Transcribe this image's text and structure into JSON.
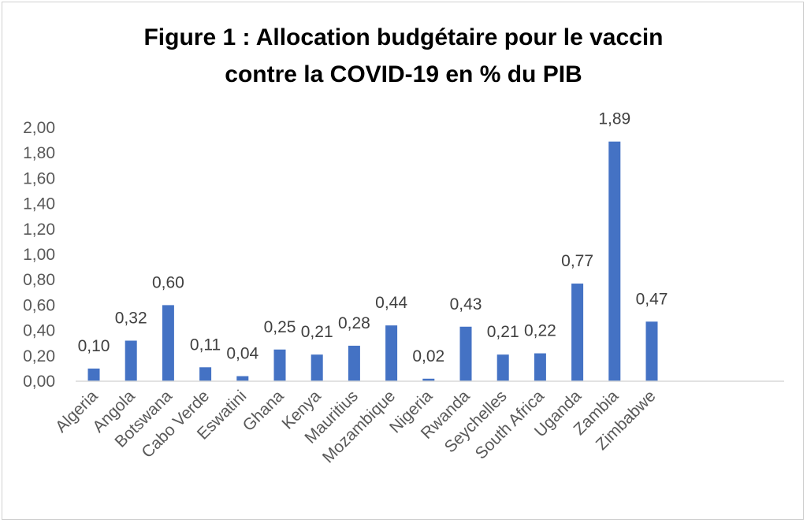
{
  "chart_data": {
    "type": "bar",
    "title_lines": [
      "Figure 1 : Allocation budgétaire pour le vaccin",
      "contre la COVID-19 en % du PIB"
    ],
    "categories": [
      "Algeria",
      "Angola",
      "Botswana",
      "Cabo Verde",
      "Eswatini",
      "Ghana",
      "Kenya",
      "Mauritius",
      "Mozambique",
      "Nigeria",
      "Rwanda",
      "Seychelles",
      "South Africa",
      "Uganda",
      "Zambia",
      "Zimbabwe"
    ],
    "values": [
      0.1,
      0.32,
      0.6,
      0.11,
      0.04,
      0.25,
      0.21,
      0.28,
      0.44,
      0.02,
      0.43,
      0.21,
      0.22,
      0.77,
      1.89,
      0.47
    ],
    "value_labels": [
      "0,10",
      "0,32",
      "0,60",
      "0,11",
      "0,04",
      "0,25",
      "0,21",
      "0,28",
      "0,44",
      "0,02",
      "0,43",
      "0,21",
      "0,22",
      "0,77",
      "1,89",
      "0,47"
    ],
    "ylim": [
      0,
      2
    ],
    "yticks": [
      "0,00",
      "0,20",
      "0,40",
      "0,60",
      "0,80",
      "1,00",
      "1,20",
      "1,40",
      "1,60",
      "1,80",
      "2,00"
    ],
    "xlabel": "",
    "ylabel": "",
    "grid": false,
    "bar_color": "#4472C4",
    "axis_color": "#d9d9d9"
  }
}
